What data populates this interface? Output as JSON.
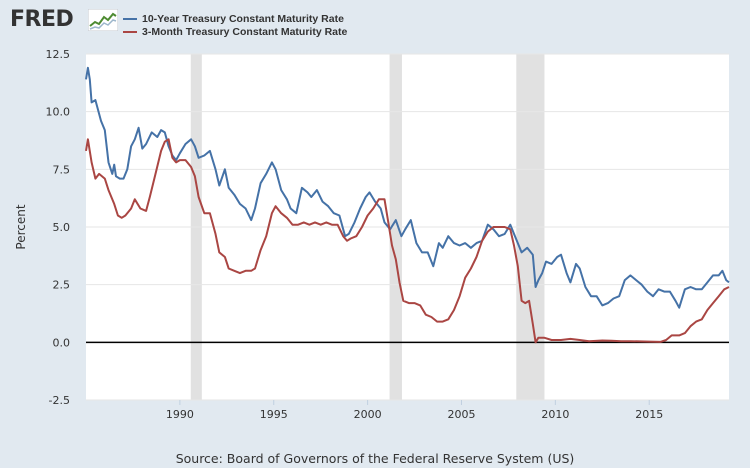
{
  "logo": {
    "text": "FRED"
  },
  "source": "Source: Board of Governors of the Federal Reserve System (US)",
  "chart_data": {
    "type": "line",
    "title": "",
    "xlabel": "",
    "ylabel": "Percent",
    "xlim": [
      1985.0,
      2019.25
    ],
    "ylim": [
      -2.5,
      12.5
    ],
    "yticks": [
      -2.5,
      0.0,
      2.5,
      5.0,
      7.5,
      10.0,
      12.5
    ],
    "ytick_labels": [
      "-2.5",
      "0.0",
      "2.5",
      "5.0",
      "7.5",
      "10.0",
      "12.5"
    ],
    "xticks": [
      1990,
      1995,
      2000,
      2005,
      2010,
      2015
    ],
    "xtick_labels": [
      "1990",
      "1995",
      "2000",
      "2005",
      "2010",
      "2015"
    ],
    "grid": "horizontal",
    "legend_position": "top-left",
    "zero_line": true,
    "recessions": [
      [
        1990.58,
        1991.17
      ],
      [
        2001.17,
        2001.83
      ],
      [
        2007.92,
        2009.42
      ]
    ],
    "series": [
      {
        "name": "10-Year Treasury Constant Maturity Rate",
        "color": "#4572a7",
        "x": [
          1985.0,
          1985.1,
          1985.2,
          1985.3,
          1985.5,
          1985.6,
          1985.8,
          1986.0,
          1986.2,
          1986.4,
          1986.5,
          1986.6,
          1986.8,
          1987.0,
          1987.2,
          1987.4,
          1987.6,
          1987.8,
          1988.0,
          1988.2,
          1988.5,
          1988.8,
          1989.0,
          1989.2,
          1989.4,
          1989.6,
          1989.8,
          1990.0,
          1990.3,
          1990.6,
          1990.8,
          1991.0,
          1991.3,
          1991.6,
          1991.9,
          1992.1,
          1992.4,
          1992.6,
          1992.9,
          1993.2,
          1993.5,
          1993.8,
          1994.0,
          1994.3,
          1994.6,
          1994.9,
          1995.1,
          1995.4,
          1995.7,
          1995.9,
          1996.2,
          1996.5,
          1996.8,
          1997.0,
          1997.3,
          1997.6,
          1997.9,
          1998.2,
          1998.5,
          1998.8,
          1999.0,
          1999.3,
          1999.6,
          1999.9,
          2000.1,
          2000.4,
          2000.7,
          2000.9,
          2001.2,
          2001.5,
          2001.8,
          2002.0,
          2002.3,
          2002.6,
          2002.9,
          2003.2,
          2003.5,
          2003.8,
          2004.0,
          2004.3,
          2004.6,
          2004.9,
          2005.2,
          2005.5,
          2005.8,
          2006.1,
          2006.4,
          2006.7,
          2007.0,
          2007.3,
          2007.6,
          2007.9,
          2008.2,
          2008.5,
          2008.8,
          2008.95,
          2009.1,
          2009.3,
          2009.5,
          2009.8,
          2010.1,
          2010.3,
          2010.6,
          2010.8,
          2011.1,
          2011.3,
          2011.6,
          2011.9,
          2012.2,
          2012.5,
          2012.8,
          2013.1,
          2013.4,
          2013.7,
          2014.0,
          2014.3,
          2014.6,
          2014.9,
          2015.2,
          2015.5,
          2015.8,
          2016.1,
          2016.4,
          2016.6,
          2016.9,
          2017.2,
          2017.5,
          2017.8,
          2018.1,
          2018.4,
          2018.7,
          2018.9,
          2019.1,
          2019.25
        ],
        "y": [
          11.4,
          11.9,
          11.4,
          10.4,
          10.5,
          10.2,
          9.6,
          9.2,
          7.8,
          7.3,
          7.7,
          7.2,
          7.1,
          7.1,
          7.5,
          8.5,
          8.8,
          9.3,
          8.4,
          8.6,
          9.1,
          8.9,
          9.2,
          9.1,
          8.5,
          8.1,
          7.9,
          8.2,
          8.6,
          8.8,
          8.5,
          8.0,
          8.1,
          8.3,
          7.5,
          6.8,
          7.5,
          6.7,
          6.4,
          6.0,
          5.8,
          5.3,
          5.8,
          6.9,
          7.3,
          7.8,
          7.5,
          6.6,
          6.2,
          5.8,
          5.6,
          6.7,
          6.5,
          6.3,
          6.6,
          6.1,
          5.9,
          5.6,
          5.5,
          4.6,
          4.7,
          5.2,
          5.8,
          6.3,
          6.5,
          6.1,
          5.8,
          5.2,
          4.9,
          5.3,
          4.6,
          4.9,
          5.3,
          4.3,
          3.9,
          3.9,
          3.3,
          4.3,
          4.1,
          4.6,
          4.3,
          4.2,
          4.3,
          4.1,
          4.3,
          4.4,
          5.1,
          4.9,
          4.6,
          4.7,
          5.1,
          4.5,
          3.9,
          4.1,
          3.8,
          2.4,
          2.7,
          3.0,
          3.5,
          3.4,
          3.7,
          3.8,
          3.0,
          2.6,
          3.4,
          3.2,
          2.4,
          2.0,
          2.0,
          1.6,
          1.7,
          1.9,
          2.0,
          2.7,
          2.9,
          2.7,
          2.5,
          2.2,
          2.0,
          2.3,
          2.2,
          2.2,
          1.8,
          1.5,
          2.3,
          2.4,
          2.3,
          2.3,
          2.6,
          2.9,
          2.9,
          3.1,
          2.7,
          2.6
        ]
      },
      {
        "name": "3-Month Treasury Constant Maturity Rate",
        "color": "#aa4643",
        "x": [
          1985.0,
          1985.1,
          1985.3,
          1985.5,
          1985.7,
          1986.0,
          1986.2,
          1986.5,
          1986.7,
          1986.9,
          1987.1,
          1987.4,
          1987.6,
          1987.9,
          1988.2,
          1988.4,
          1988.7,
          1989.0,
          1989.2,
          1989.4,
          1989.6,
          1989.8,
          1990.0,
          1990.3,
          1990.6,
          1990.8,
          1991.0,
          1991.3,
          1991.6,
          1991.9,
          1992.1,
          1992.4,
          1992.6,
          1992.9,
          1993.2,
          1993.5,
          1993.8,
          1994.0,
          1994.3,
          1994.6,
          1994.9,
          1995.1,
          1995.4,
          1995.7,
          1996.0,
          1996.3,
          1996.6,
          1996.9,
          1997.2,
          1997.5,
          1997.8,
          1998.1,
          1998.4,
          1998.7,
          1998.9,
          1999.1,
          1999.4,
          1999.7,
          2000.0,
          2000.3,
          2000.6,
          2000.9,
          2001.1,
          2001.3,
          2001.5,
          2001.7,
          2001.9,
          2002.2,
          2002.5,
          2002.8,
          2003.1,
          2003.4,
          2003.7,
          2004.0,
          2004.3,
          2004.6,
          2004.9,
          2005.2,
          2005.5,
          2005.8,
          2006.1,
          2006.4,
          2006.7,
          2007.0,
          2007.3,
          2007.6,
          2007.8,
          2008.0,
          2008.2,
          2008.4,
          2008.6,
          2008.8,
          2008.95,
          2009.1,
          2009.4,
          2009.8,
          2010.3,
          2010.8,
          2011.3,
          2011.8,
          2012.5,
          2013.0,
          2013.5,
          2014.0,
          2014.5,
          2015.0,
          2015.6,
          2015.9,
          2016.2,
          2016.6,
          2016.9,
          2017.2,
          2017.5,
          2017.8,
          2018.1,
          2018.4,
          2018.7,
          2019.0,
          2019.25
        ],
        "y": [
          8.3,
          8.8,
          7.8,
          7.1,
          7.3,
          7.1,
          6.6,
          6.0,
          5.5,
          5.4,
          5.5,
          5.8,
          6.2,
          5.8,
          5.7,
          6.3,
          7.3,
          8.3,
          8.7,
          8.8,
          8.0,
          7.8,
          7.9,
          7.9,
          7.6,
          7.2,
          6.3,
          5.6,
          5.6,
          4.7,
          3.9,
          3.7,
          3.2,
          3.1,
          3.0,
          3.1,
          3.1,
          3.2,
          4.0,
          4.6,
          5.6,
          5.9,
          5.6,
          5.4,
          5.1,
          5.1,
          5.2,
          5.1,
          5.2,
          5.1,
          5.2,
          5.1,
          5.1,
          4.6,
          4.4,
          4.5,
          4.6,
          5.0,
          5.5,
          5.8,
          6.2,
          6.2,
          5.2,
          4.2,
          3.6,
          2.6,
          1.8,
          1.7,
          1.7,
          1.6,
          1.2,
          1.1,
          0.9,
          0.9,
          1.0,
          1.4,
          2.0,
          2.8,
          3.2,
          3.7,
          4.4,
          4.8,
          5.0,
          5.0,
          5.0,
          4.9,
          4.2,
          3.3,
          1.8,
          1.7,
          1.8,
          0.8,
          0.0,
          0.2,
          0.2,
          0.1,
          0.1,
          0.15,
          0.1,
          0.05,
          0.08,
          0.07,
          0.05,
          0.05,
          0.04,
          0.03,
          0.02,
          0.1,
          0.3,
          0.3,
          0.4,
          0.7,
          0.9,
          1.0,
          1.4,
          1.7,
          2.0,
          2.3,
          2.4
        ]
      }
    ]
  }
}
